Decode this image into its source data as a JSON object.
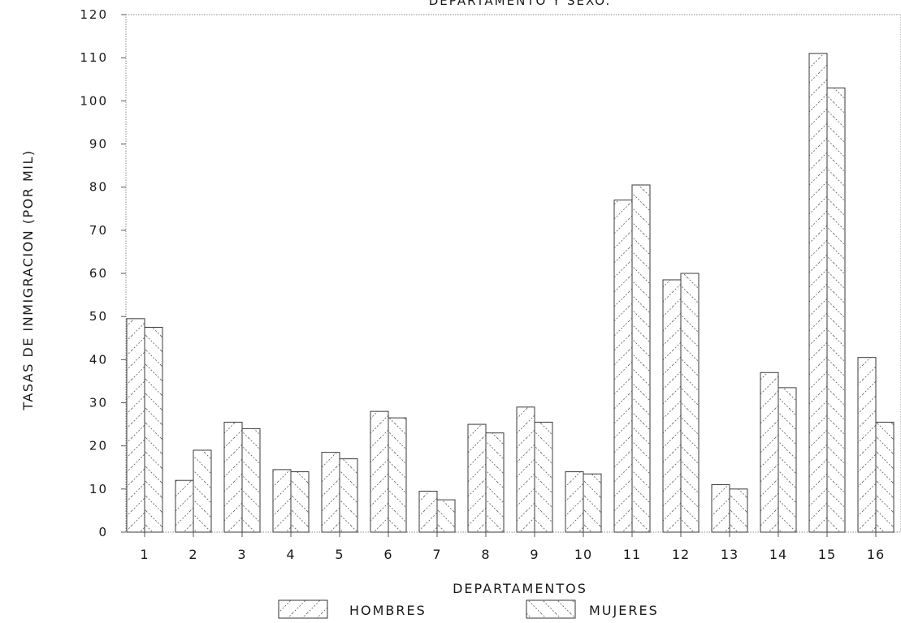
{
  "chart_data": {
    "type": "bar",
    "title": "DEPARTAMENTO Y SEXO.",
    "xlabel": "DEPARTAMENTOS",
    "ylabel": "TASAS DE INMIGRACION (POR MIL)",
    "ylim": [
      0,
      120
    ],
    "yticks": [
      "0",
      "10",
      "20",
      "30",
      "40",
      "50",
      "60",
      "70",
      "80",
      "90",
      "100",
      "110",
      "120"
    ],
    "categories": [
      "1",
      "2",
      "3",
      "4",
      "5",
      "6",
      "7",
      "8",
      "9",
      "10",
      "11",
      "12",
      "13",
      "14",
      "15",
      "16"
    ],
    "series": [
      {
        "name": "HOMBRES",
        "values": [
          49.5,
          12,
          25.5,
          14.5,
          18.5,
          28,
          9.5,
          25,
          29,
          14,
          77,
          58.5,
          11,
          37,
          111,
          40.5
        ]
      },
      {
        "name": "MUJERES",
        "values": [
          47.5,
          19,
          24,
          14,
          17,
          26.5,
          7.5,
          23,
          25.5,
          13.5,
          80.5,
          60,
          10,
          33.5,
          103,
          25.5
        ]
      }
    ],
    "grid": false,
    "legend_position": "bottom"
  }
}
